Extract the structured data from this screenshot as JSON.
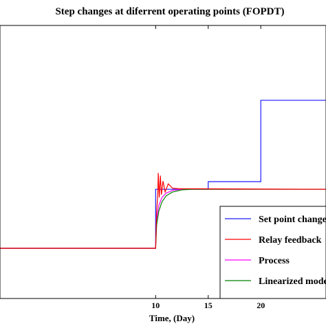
{
  "chart_data": {
    "type": "line",
    "title": "Step changes at diferrent operating points (FOPDT)",
    "xlabel": "Time, (Day)",
    "ylabel": "",
    "xlim": [
      -4.8,
      26.2
    ],
    "ylim": [
      0.7,
      5.7
    ],
    "x_ticks": [
      10,
      15,
      20
    ],
    "grid": false,
    "legend_position": "bottom-right",
    "series": [
      {
        "name": "Set point changes",
        "color": "#1a1aff",
        "points": [
          [
            -4.8,
            1.62
          ],
          [
            10,
            1.62
          ],
          [
            10,
            2.7
          ],
          [
            15,
            2.7
          ],
          [
            15,
            2.84
          ],
          [
            20,
            2.84
          ],
          [
            20,
            4.33
          ],
          [
            26.2,
            4.33
          ]
        ]
      },
      {
        "name": "Relay feedback",
        "color": "#ff0000",
        "points": [
          [
            -4.8,
            1.62
          ],
          [
            10,
            1.62
          ],
          [
            10.1,
            2.3
          ],
          [
            10.2,
            2.6
          ],
          [
            10.25,
            3.0
          ],
          [
            10.35,
            2.55
          ],
          [
            10.45,
            2.95
          ],
          [
            10.55,
            2.6
          ],
          [
            10.7,
            2.85
          ],
          [
            10.9,
            2.65
          ],
          [
            11.2,
            2.8
          ],
          [
            11.6,
            2.72
          ],
          [
            12.2,
            2.71
          ],
          [
            26.2,
            2.7
          ]
        ]
      },
      {
        "name": "Process",
        "color": "#ff00ff",
        "points": [
          [
            -4.8,
            1.62
          ],
          [
            10,
            1.62
          ],
          [
            10.1,
            2.15
          ],
          [
            10.3,
            2.4
          ],
          [
            10.6,
            2.55
          ],
          [
            11.0,
            2.63
          ],
          [
            11.6,
            2.68
          ],
          [
            12.5,
            2.7
          ],
          [
            26.2,
            2.7
          ]
        ]
      },
      {
        "name": "Linearized model",
        "color": "#008000",
        "points": [
          [
            -4.8,
            1.62
          ],
          [
            10,
            1.62
          ],
          [
            10.1,
            2.05
          ],
          [
            10.3,
            2.3
          ],
          [
            10.6,
            2.47
          ],
          [
            11.0,
            2.58
          ],
          [
            11.6,
            2.65
          ],
          [
            12.5,
            2.69
          ],
          [
            13.5,
            2.7
          ],
          [
            26.2,
            2.7
          ]
        ]
      }
    ]
  }
}
